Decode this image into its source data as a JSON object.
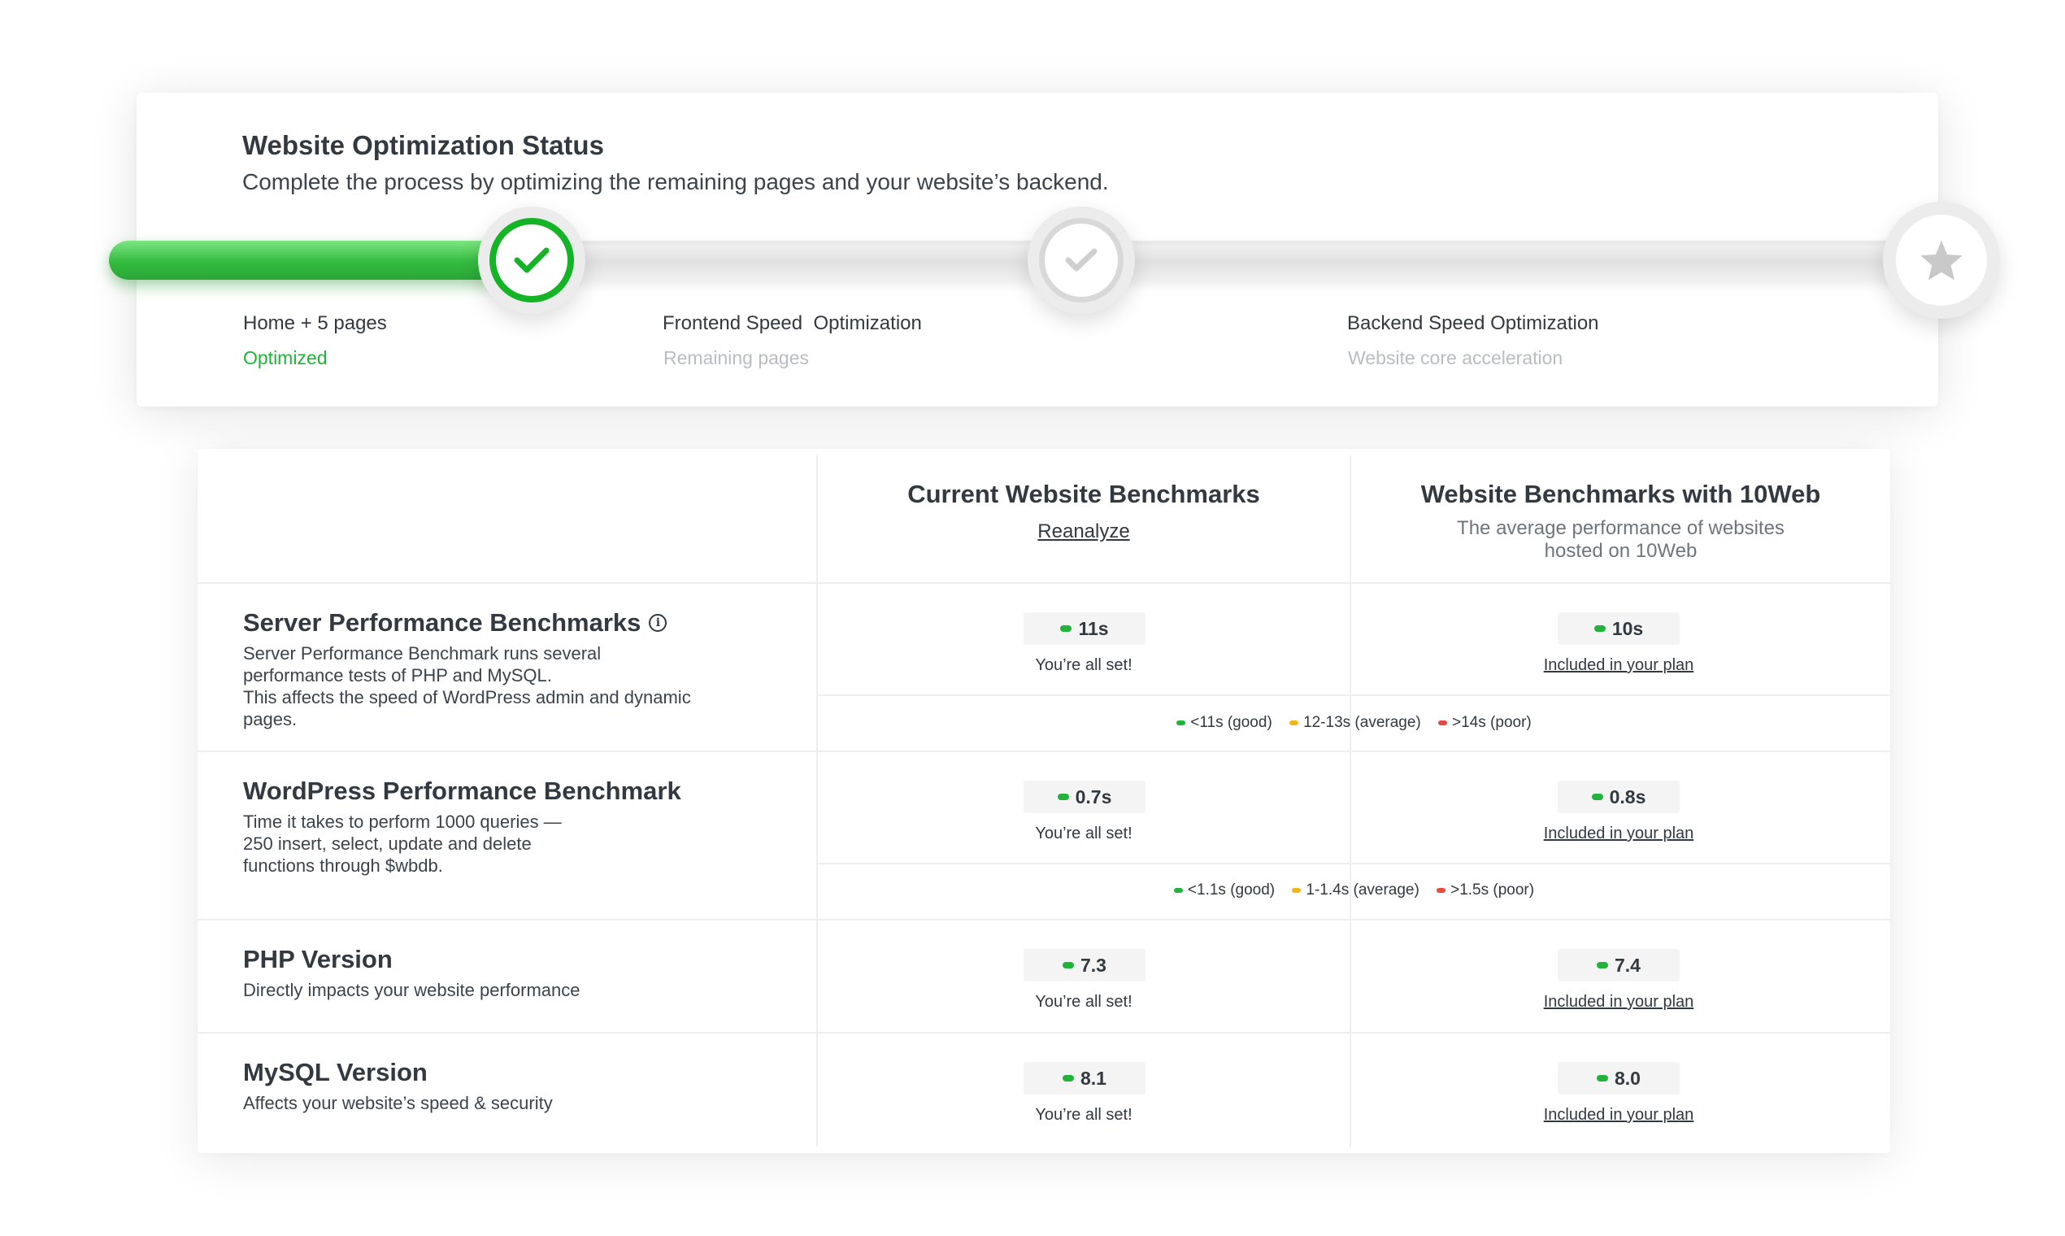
{
  "status": {
    "title": "Website Optimization Status",
    "subtitle": "Complete the process by optimizing the remaining pages and your website’s backend.",
    "progress_fraction": 0.21,
    "steps": [
      {
        "label": "Home + 5 pages",
        "state": "Optimized",
        "icon": "check-icon"
      },
      {
        "label": "Frontend Speed  Optimization",
        "state": "Remaining pages",
        "icon": "check-icon"
      },
      {
        "label": "Backend Speed Optimization",
        "state": "Website core acceleration",
        "icon": "star-icon"
      }
    ],
    "colors": {
      "done": "#22b33a",
      "pending": "#d8d8d8"
    }
  },
  "benchmarks": {
    "columns": [
      {
        "title": "Current Website Benchmarks",
        "link": "Reanalyze"
      },
      {
        "title": "Website Benchmarks with 10Web",
        "desc": "The average performance of websites hosted on 10Web"
      }
    ],
    "rows": [
      {
        "title": "Server Performance Benchmarks",
        "desc": "Server Performance Benchmark runs several performance tests of PHP and MySQL.\nThis affects the speed of WordPress admin and dynamic pages.",
        "current": "11s",
        "current_note": "You’re all set!",
        "tenweb": "10s",
        "tenweb_note": "Included in your plan",
        "legend": [
          {
            "label": "<11s (good)",
            "color": "#22b33a"
          },
          {
            "label": "12-13s (average)",
            "color": "#f4b41a"
          },
          {
            "label": ">14s (poor)",
            "color": "#e84a3c"
          }
        ]
      },
      {
        "title": "WordPress Performance Benchmark",
        "desc": "Time it takes to perform 1000 queries —\n250 insert, select, update and delete\nfunctions through $wbdb.",
        "current": "0.7s",
        "current_note": "You’re all set!",
        "tenweb": "0.8s",
        "tenweb_note": "Included in your plan",
        "legend": [
          {
            "label": "<1.1s (good)",
            "color": "#22b33a"
          },
          {
            "label": "1-1.4s (average)",
            "color": "#f4b41a"
          },
          {
            "label": ">1.5s (poor)",
            "color": "#e84a3c"
          }
        ]
      },
      {
        "title": "PHP Version",
        "desc": "Directly impacts your website performance",
        "current": "7.3",
        "current_note": "You’re all set!",
        "tenweb": "7.4",
        "tenweb_note": "Included in your plan"
      },
      {
        "title": "MySQL Version",
        "desc": "Affects your website’s speed & security",
        "current": "8.1",
        "current_note": "You’re all set!",
        "tenweb": "8.0",
        "tenweb_note": "Included in your plan"
      }
    ]
  }
}
